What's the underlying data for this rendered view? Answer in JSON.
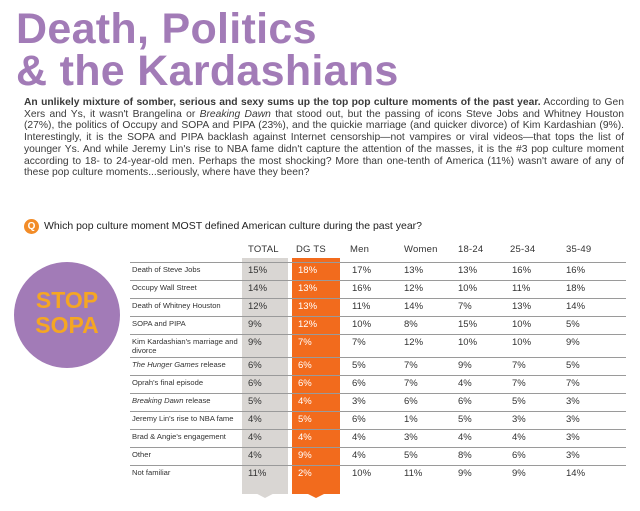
{
  "title_lines": [
    "Death, Politics",
    "& the Kardashians"
  ],
  "intro": {
    "lead": "An unlikely mixture of somber, serious and sexy sums up the top pop culture moments of the past year.",
    "body_part1": " According to Gen Xers and Ys, it wasn't Brangelina or ",
    "body_italic": "Breaking Dawn",
    "body_part2": " that stood out, but the passing of icons Steve Jobs and Whitney Houston (27%), the politics of Occupy and SOPA and PIPA (23%), and the quickie marriage (and quicker divorce) of Kim Kardashian (9%). Interestingly, it is the SOPA and PIPA backlash against Internet censorship—not vampires or viral videos—that tops the list of younger Ys. And while Jeremy Lin's rise to NBA fame didn't capture the attention of the masses, it is the #3 pop culture moment according to 18- to 24-year-old men. Perhaps the most shocking? More than one-tenth of America (11%) wasn't aware of any of these pop culture moments...seriously, where have they been?"
  },
  "question": {
    "badge": "Q",
    "text": "Which pop culture moment MOST defined American culture during the past year?"
  },
  "stop_sopa": [
    "STOP",
    "SOPA"
  ],
  "headers": [
    "TOTAL",
    "DG TS",
    "Men",
    "Women",
    "18-24",
    "25-34",
    "35-49"
  ],
  "rows": [
    {
      "label": "Death of Steve Jobs",
      "italic_part": "",
      "values": [
        "15%",
        "18%",
        "17%",
        "13%",
        "13%",
        "16%",
        "16%"
      ]
    },
    {
      "label": "Occupy Wall Street",
      "italic_part": "",
      "values": [
        "14%",
        "13%",
        "16%",
        "12%",
        "10%",
        "11%",
        "18%"
      ]
    },
    {
      "label": "Death of Whitney Houston",
      "italic_part": "",
      "values": [
        "12%",
        "13%",
        "11%",
        "14%",
        "7%",
        "13%",
        "14%"
      ]
    },
    {
      "label": "SOPA and PIPA",
      "italic_part": "",
      "values": [
        "9%",
        "12%",
        "10%",
        "8%",
        "15%",
        "10%",
        "5%"
      ]
    },
    {
      "label": "Kim Kardashian's marriage and divorce",
      "italic_part": "",
      "values": [
        "9%",
        "7%",
        "7%",
        "12%",
        "10%",
        "10%",
        "9%"
      ]
    },
    {
      "label": " release",
      "italic_part": "The Hunger Games",
      "values": [
        "6%",
        "6%",
        "5%",
        "7%",
        "9%",
        "7%",
        "5%"
      ]
    },
    {
      "label": "Oprah's final episode",
      "italic_part": "",
      "values": [
        "6%",
        "6%",
        "6%",
        "7%",
        "4%",
        "7%",
        "7%"
      ]
    },
    {
      "label": " release",
      "italic_part": "Breaking Dawn",
      "values": [
        "5%",
        "4%",
        "3%",
        "6%",
        "6%",
        "5%",
        "3%"
      ]
    },
    {
      "label": "Jeremy Lin's rise to NBA fame",
      "italic_part": "",
      "values": [
        "4%",
        "5%",
        "6%",
        "1%",
        "5%",
        "3%",
        "3%"
      ]
    },
    {
      "label": "Brad & Angie's engagement",
      "italic_part": "",
      "values": [
        "4%",
        "4%",
        "4%",
        "3%",
        "4%",
        "4%",
        "3%"
      ]
    },
    {
      "label": "Other",
      "italic_part": "",
      "values": [
        "4%",
        "9%",
        "4%",
        "5%",
        "8%",
        "6%",
        "3%"
      ]
    },
    {
      "label": "Not familiar",
      "italic_part": "",
      "values": [
        "11%",
        "2%",
        "10%",
        "11%",
        "9%",
        "9%",
        "14%"
      ]
    }
  ],
  "colors": {
    "title_purple": "#a27bb7",
    "accent_orange": "#f26b1d",
    "total_gray": "#d9d6d3",
    "stop_text": "#f5a623"
  }
}
